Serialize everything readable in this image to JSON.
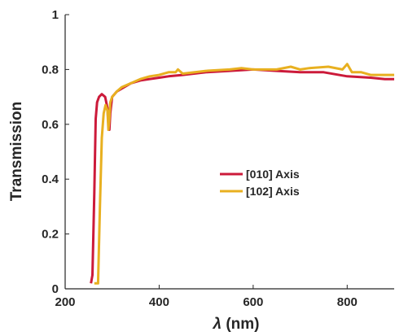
{
  "chart_data": {
    "type": "line",
    "xlabel_symbol": "λ",
    "xlabel_unit": " (nm)",
    "ylabel": "Transmission",
    "xlim": [
      200,
      900
    ],
    "ylim": [
      0,
      1
    ],
    "xticks": [
      "200",
      "400",
      "600",
      "800"
    ],
    "xtick_values": [
      200,
      400,
      600,
      800
    ],
    "yticks": [
      "0",
      "0.2",
      "0.4",
      "0.6",
      "0.8",
      "1"
    ],
    "ytick_values": [
      0,
      0.2,
      0.4,
      0.6,
      0.8,
      1.0
    ],
    "grid": false,
    "legend_position": "center-right",
    "series": [
      {
        "name": "[010] Axis",
        "color": "#cc1a3a",
        "x": [
          255,
          258,
          262,
          265,
          268,
          272,
          278,
          285,
          290,
          292,
          294,
          296,
          300,
          310,
          320,
          340,
          360,
          380,
          400,
          420,
          450,
          500,
          550,
          600,
          650,
          700,
          750,
          800,
          850,
          880,
          900
        ],
        "y": [
          0.02,
          0.05,
          0.35,
          0.62,
          0.68,
          0.7,
          0.71,
          0.7,
          0.66,
          0.6,
          0.58,
          0.64,
          0.7,
          0.72,
          0.73,
          0.75,
          0.76,
          0.765,
          0.77,
          0.775,
          0.78,
          0.79,
          0.795,
          0.8,
          0.795,
          0.79,
          0.79,
          0.775,
          0.77,
          0.765,
          0.765
        ]
      },
      {
        "name": "[102] Axis",
        "color": "#e8b020",
        "x": [
          262,
          266,
          270,
          274,
          278,
          282,
          286,
          290,
          292,
          294,
          296,
          300,
          305,
          310,
          320,
          340,
          360,
          380,
          400,
          420,
          435,
          440,
          450,
          500,
          550,
          575,
          600,
          650,
          680,
          700,
          720,
          760,
          790,
          800,
          810,
          830,
          850,
          880,
          900
        ],
        "y": [
          0.02,
          0.02,
          0.02,
          0.3,
          0.55,
          0.64,
          0.67,
          0.65,
          0.58,
          0.62,
          0.68,
          0.7,
          0.71,
          0.72,
          0.735,
          0.75,
          0.765,
          0.775,
          0.78,
          0.79,
          0.79,
          0.8,
          0.785,
          0.795,
          0.8,
          0.805,
          0.8,
          0.8,
          0.81,
          0.8,
          0.805,
          0.81,
          0.8,
          0.82,
          0.79,
          0.79,
          0.78,
          0.78,
          0.78
        ]
      }
    ]
  }
}
